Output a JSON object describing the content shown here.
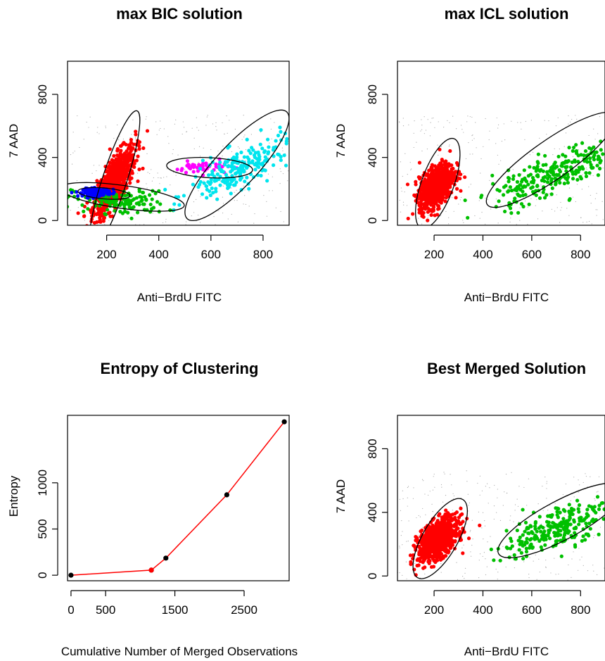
{
  "chart_data": [
    {
      "type": "scatter",
      "title": "max BIC solution",
      "xlabel": "Anti−BrdU FITC",
      "ylabel": "7 AAD",
      "xlim": [
        50,
        900
      ],
      "ylim": [
        -30,
        1010
      ],
      "xticks": [
        200,
        400,
        600,
        800
      ],
      "yticks": [
        0,
        400,
        800
      ],
      "clusters": [
        {
          "color": "#ff0000",
          "center": [
            230,
            250
          ],
          "spread": [
            40,
            110
          ],
          "corr": 0.75,
          "n": 700,
          "ellipse": {
            "center": [
              230,
              255
            ],
            "axes": [
              280,
              85
            ],
            "angle_deg": 72
          }
        },
        {
          "color": "#00c000",
          "center": [
            250,
            120
          ],
          "spread": [
            90,
            40
          ],
          "corr": -0.2,
          "n": 140,
          "ellipse": {
            "center": [
              260,
              150
            ],
            "axes": [
              240,
              80
            ],
            "angle_deg": -8
          }
        },
        {
          "color": "#0000ff",
          "center": [
            160,
            180
          ],
          "spread": [
            25,
            12
          ],
          "corr": 0.1,
          "n": 220,
          "ellipse": {
            "center": [
              190,
              172
            ],
            "axes": [
              100,
              38
            ],
            "angle_deg": -5
          }
        },
        {
          "color": "#ff00ff",
          "center": [
            570,
            335
          ],
          "spread": [
            55,
            20
          ],
          "corr": 0.1,
          "n": 45,
          "ellipse": {
            "center": [
              595,
              335
            ],
            "axes": [
              165,
              70
            ],
            "angle_deg": -3
          }
        },
        {
          "color": "#00e5ee",
          "center": [
            710,
            330
          ],
          "spread": [
            95,
            95
          ],
          "corr": 0.75,
          "n": 220,
          "ellipse": {
            "center": [
              700,
              350
            ],
            "axes": [
              280,
              145
            ],
            "angle_deg": 47
          }
        }
      ]
    },
    {
      "type": "scatter",
      "title": "max ICL solution",
      "xlabel": "Anti−BrdU FITC",
      "ylabel": "7 AAD",
      "xlim": [
        50,
        900
      ],
      "ylim": [
        -30,
        1010
      ],
      "xticks": [
        200,
        400,
        600,
        800
      ],
      "yticks": [
        0,
        400,
        800
      ],
      "clusters": [
        {
          "color": "#ff0000",
          "center": [
            210,
            220
          ],
          "spread": [
            35,
            70
          ],
          "corr": 0.5,
          "n": 900,
          "ellipse": {
            "center": [
              215,
              235
            ],
            "axes": [
              195,
              120
            ],
            "angle_deg": 70
          }
        },
        {
          "color": "#00c000",
          "center": [
            680,
            290
          ],
          "spread": [
            120,
            100
          ],
          "corr": 0.75,
          "n": 260,
          "ellipse": {
            "center": [
              680,
              385
            ],
            "axes": [
              320,
              145
            ],
            "angle_deg": 35
          }
        }
      ]
    },
    {
      "type": "line",
      "title": "Entropy of Clustering",
      "xlabel": "Cumulative Number of Merged Observations",
      "ylabel": "Entropy",
      "xlim": [
        -50,
        3150
      ],
      "ylim": [
        -60,
        1730
      ],
      "xticks": [
        0,
        500,
        1500,
        2500
      ],
      "yticks": [
        0,
        500,
        1000
      ],
      "x": [
        0,
        1160,
        1370,
        2250,
        3080
      ],
      "y": [
        0,
        55,
        185,
        870,
        1660
      ],
      "fit_line": {
        "color": "#ff0000",
        "x": [
          0,
          1160,
          1370,
          2250,
          3080
        ],
        "y": [
          0,
          55,
          185,
          870,
          1660
        ]
      },
      "highlight_point": {
        "x": 1160,
        "y": 55,
        "color": "#ff0000"
      }
    },
    {
      "type": "scatter",
      "title": "Best Merged Solution",
      "xlabel": "Anti−BrdU FITC",
      "ylabel": "7 AAD",
      "xlim": [
        50,
        900
      ],
      "ylim": [
        -30,
        1010
      ],
      "xticks": [
        200,
        400,
        600,
        800
      ],
      "yticks": [
        0,
        400,
        800
      ],
      "clusters": [
        {
          "color": "#ff0000",
          "center": [
            215,
            230
          ],
          "spread": [
            40,
            65
          ],
          "corr": 0.5,
          "n": 900,
          "ellipse": {
            "center": [
              225,
              235
            ],
            "axes": [
              185,
              130
            ],
            "angle_deg": 60
          }
        },
        {
          "color": "#00c000",
          "center": [
            700,
            300
          ],
          "spread": [
            110,
            90
          ],
          "corr": 0.7,
          "n": 260,
          "ellipse": {
            "center": [
              720,
              350
            ],
            "axes": [
              290,
              145
            ],
            "angle_deg": 28
          }
        }
      ]
    }
  ]
}
